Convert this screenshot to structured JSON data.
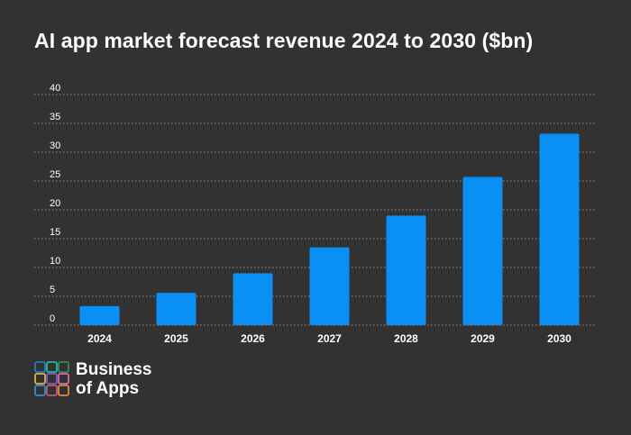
{
  "title": "AI app market forecast revenue 2024 to 2030 ($bn)",
  "brand": {
    "line1": "Business",
    "line2": "of Apps",
    "tile_colors": [
      "#1e7fc2",
      "#2bb3a3",
      "#2f8f4e",
      "#e0b13a",
      "#7a59c9",
      "#d26fae",
      "#2f8fd6",
      "#c9546b",
      "#e28a3c"
    ]
  },
  "colors": {
    "background": "#323232",
    "bar": "#0a90f5",
    "text": "#ffffff",
    "grid": "#9a9a9a"
  },
  "chart_data": {
    "type": "bar",
    "title": "AI app market forecast revenue 2024 to 2030 ($bn)",
    "categories": [
      "2024",
      "2025",
      "2026",
      "2027",
      "2028",
      "2029",
      "2030"
    ],
    "values": [
      3.3,
      5.6,
      9.0,
      13.5,
      19.0,
      25.7,
      33.2
    ],
    "yticks": [
      0,
      5,
      10,
      15,
      20,
      25,
      30,
      35,
      40
    ],
    "ylim": [
      0,
      40
    ],
    "grid": true,
    "legend": "none"
  }
}
